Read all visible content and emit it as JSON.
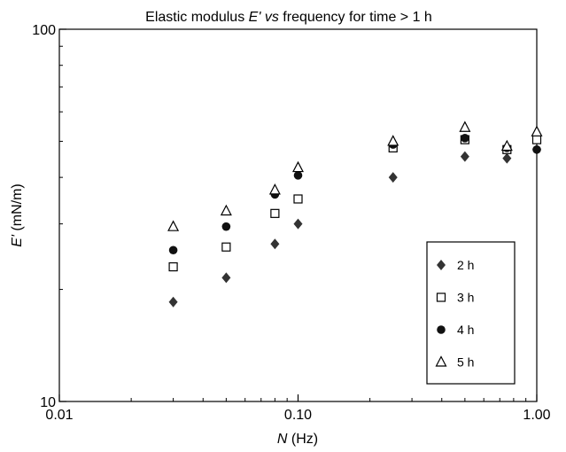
{
  "chart_data": {
    "type": "scatter",
    "title_parts": [
      "Elastic modulus ",
      "E'",
      " vs",
      " frequency for time > 1 h"
    ],
    "xlabel_parts": [
      "N",
      " (Hz)"
    ],
    "ylabel_parts": [
      "E'",
      " (mN/m)"
    ],
    "xscale": "log",
    "yscale": "log",
    "xlim": [
      0.01,
      1.0
    ],
    "ylim": [
      10,
      100
    ],
    "xticks": [
      {
        "value": 0.01,
        "label": "0.01"
      },
      {
        "value": 0.1,
        "label": "0.10"
      },
      {
        "value": 1.0,
        "label": "1.00"
      }
    ],
    "yticks": [
      {
        "value": 10,
        "label": "10"
      },
      {
        "value": 100,
        "label": "100"
      }
    ],
    "grid": false,
    "legend_position": "bottom-right",
    "series": [
      {
        "name": "2 h",
        "marker": "diamond",
        "x": [
          0.03,
          0.05,
          0.08,
          0.1,
          0.25,
          0.5,
          0.75,
          1.0
        ],
        "y": [
          18.5,
          21.5,
          26.5,
          30.0,
          40.0,
          45.5,
          45.0,
          47.5
        ]
      },
      {
        "name": "3 h",
        "marker": "square",
        "x": [
          0.03,
          0.05,
          0.08,
          0.1,
          0.25,
          0.5,
          0.75,
          1.0
        ],
        "y": [
          23.0,
          26.0,
          32.0,
          35.0,
          48.0,
          50.5,
          47.5,
          50.5
        ]
      },
      {
        "name": "4 h",
        "marker": "circle",
        "x": [
          0.03,
          0.05,
          0.08,
          0.1,
          0.25,
          0.5,
          0.75,
          1.0
        ],
        "y": [
          25.5,
          29.5,
          36.0,
          40.5,
          49.0,
          51.0,
          48.0,
          47.5
        ]
      },
      {
        "name": "5 h",
        "marker": "triangle",
        "x": [
          0.03,
          0.05,
          0.08,
          0.1,
          0.25,
          0.5,
          0.75,
          1.0
        ],
        "y": [
          29.5,
          32.5,
          37.0,
          42.5,
          50.0,
          54.5,
          48.5,
          53.0
        ]
      }
    ]
  }
}
